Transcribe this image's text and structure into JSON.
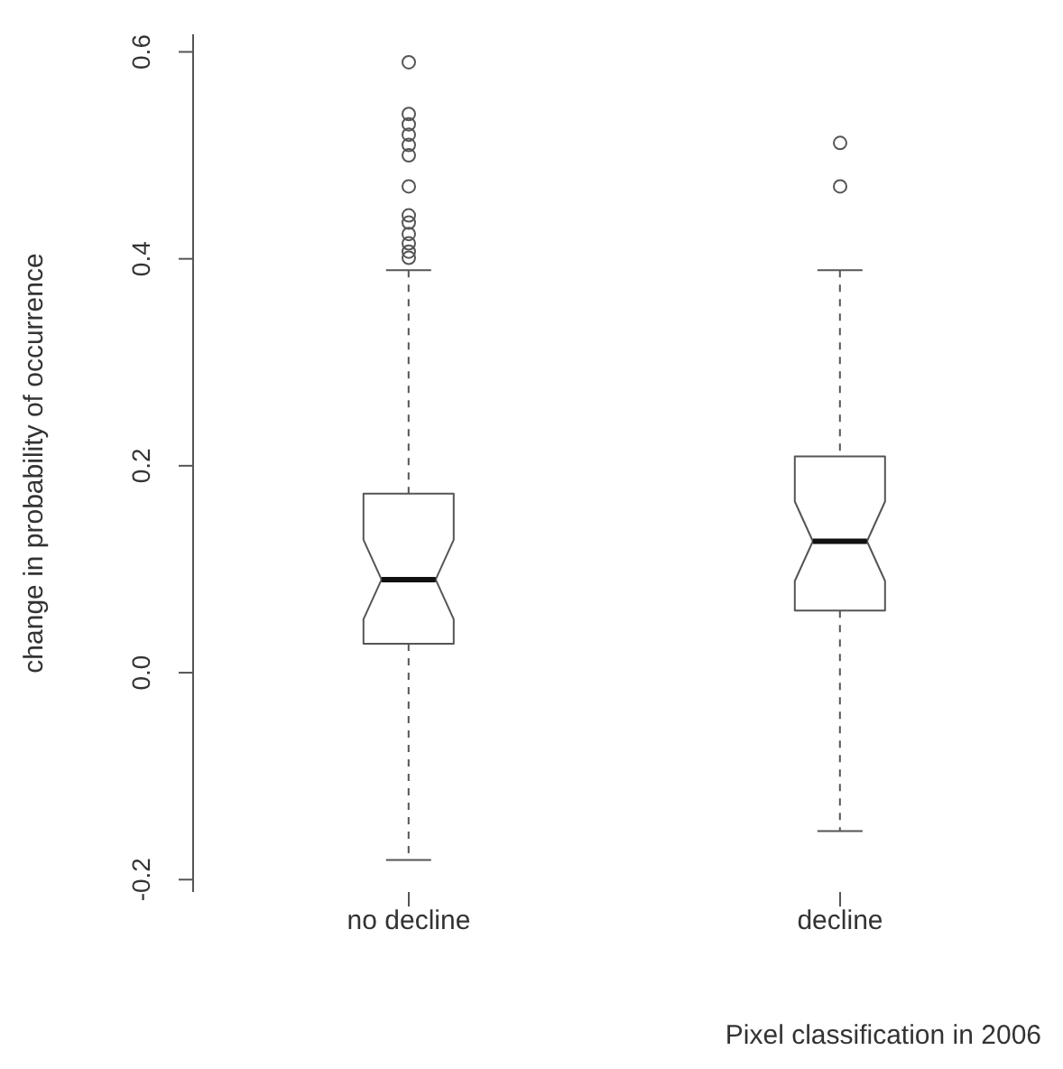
{
  "chart_data": {
    "type": "box",
    "xlabel": "Pixel classification in 2006",
    "ylabel": "change in probability of occurrence",
    "categories": [
      "no decline",
      "decline"
    ],
    "color": "#555555",
    "boxes": [
      {
        "low": -0.181,
        "q1": 0.028,
        "median": 0.09,
        "q3": 0.173,
        "high": 0.389,
        "outliers": [
          0.59,
          0.54,
          0.53,
          0.52,
          0.51,
          0.5,
          0.47,
          0.442,
          0.435,
          0.424,
          0.415,
          0.407,
          0.401
        ]
      },
      {
        "low": -0.153,
        "q1": 0.06,
        "median": 0.127,
        "q3": 0.209,
        "high": 0.389,
        "outliers": [
          0.512,
          0.47
        ]
      }
    ],
    "ylim": [
      -0.212,
      0.617
    ],
    "yticks": [
      {
        "value": -0.2,
        "label": "-0.2"
      },
      {
        "value": 0,
        "label": "0.0"
      },
      0.2,
      0.4,
      0.6
    ],
    "grid": false
  }
}
